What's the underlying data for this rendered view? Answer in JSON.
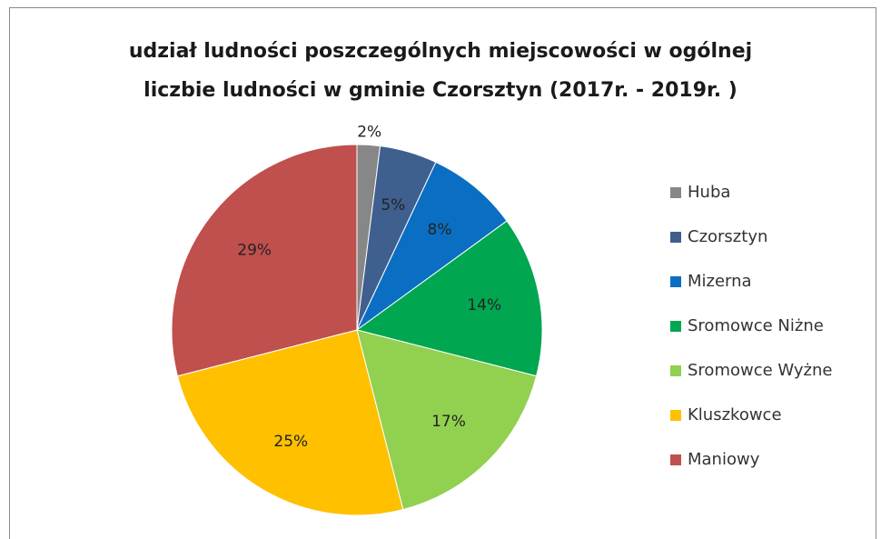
{
  "chart_data": {
    "type": "pie",
    "title": [
      "udział ludności  poszczególnych miejscowości  w ogólnej",
      "liczbie ludności  w gminie  Czorsztyn (2017r. - 2019r. )"
    ],
    "categories": [
      "Huba",
      "Czorsztyn",
      "Mizerna",
      "Sromowce Niżne",
      "Sromowce Wyżne",
      "Kluszkowce",
      "Maniowy"
    ],
    "values": [
      2,
      5,
      8,
      14,
      17,
      25,
      29
    ],
    "value_labels": [
      "2%",
      "5%",
      "8%",
      "14%",
      "17%",
      "25%",
      "29%"
    ],
    "colors": [
      "#878787",
      "#3f5f8f",
      "#0a6fc2",
      "#00a650",
      "#92d050",
      "#ffc000",
      "#c0504d"
    ],
    "legend": "right"
  }
}
